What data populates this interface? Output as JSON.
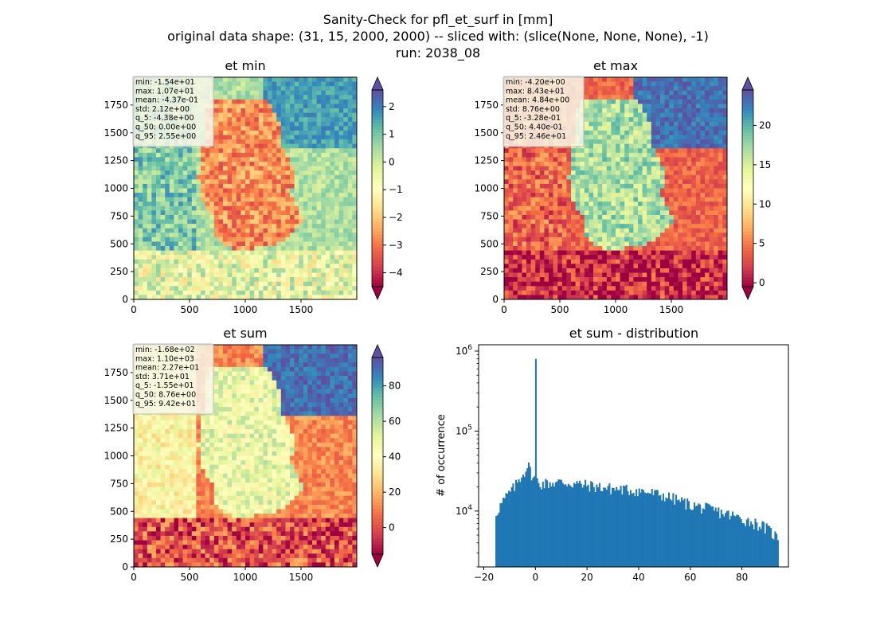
{
  "figure": {
    "title_lines": [
      "Sanity-Check for pfl_et_surf in [mm]",
      "original data shape: (31, 15, 2000, 2000) -- sliced with: (slice(None, None, None), -1)",
      "run: 2038_08"
    ]
  },
  "colors": {
    "colormap": "Spectral",
    "stops": [
      "#9e0142",
      "#d53e4f",
      "#f46d43",
      "#fdae61",
      "#fee08b",
      "#ffffbf",
      "#e6f598",
      "#abdda4",
      "#66c2a5",
      "#3288bd",
      "#5e4fa2"
    ],
    "hist_bar": "#1f77b4",
    "stats_box_bg": "#f7f7e8",
    "stats_box_border": "#bbbbbb"
  },
  "chart_data": [
    {
      "type": "heatmap",
      "title": "et min",
      "x_ticks": [
        0,
        500,
        1000,
        1500
      ],
      "y_ticks": [
        0,
        250,
        500,
        750,
        1000,
        1250,
        1500,
        1750
      ],
      "xlim": [
        0,
        2000
      ],
      "ylim": [
        0,
        2000
      ],
      "colorbar": {
        "ticks": [
          -4,
          -3,
          -2,
          -1,
          0,
          1,
          2
        ],
        "labels": [
          "−4",
          "−3",
          "−2",
          "−1",
          "0",
          "1",
          "2"
        ],
        "range": [
          -4.5,
          2.6
        ],
        "extend": "both"
      },
      "stats": [
        {
          "label": "min",
          "value": "-1.54e+01"
        },
        {
          "label": "max",
          "value": "1.07e+01"
        },
        {
          "label": "mean",
          "value": "-4.37e-01"
        },
        {
          "label": "std",
          "value": "2.12e+00"
        },
        {
          "label": "q_5",
          "value": "-4.38e+00"
        },
        {
          "label": "q_50",
          "value": "0.00e+00"
        },
        {
          "label": "q_95",
          "value": "2.55e+00"
        }
      ],
      "regions": {
        "outside": 0.4,
        "inside": -2.7,
        "ocean_north": 1.6,
        "west": 0.9,
        "south": -0.5
      }
    },
    {
      "type": "heatmap",
      "title": "et max",
      "x_ticks": [
        0,
        500,
        1000,
        1500
      ],
      "y_ticks": [
        0,
        250,
        500,
        750,
        1000,
        1250,
        1500,
        1750
      ],
      "xlim": [
        0,
        2000
      ],
      "ylim": [
        0,
        2000
      ],
      "colorbar": {
        "ticks": [
          0,
          5,
          10,
          15,
          20
        ],
        "labels": [
          "0",
          "5",
          "10",
          "15",
          "20"
        ],
        "range": [
          -0.5,
          24.5
        ],
        "extend": "both"
      },
      "stats": [
        {
          "label": "min",
          "value": "-4.20e+00"
        },
        {
          "label": "max",
          "value": "8.43e+01"
        },
        {
          "label": "mean",
          "value": "4.84e+00"
        },
        {
          "label": "std",
          "value": "8.76e+00"
        },
        {
          "label": "q_5",
          "value": "-3.28e-01"
        },
        {
          "label": "q_50",
          "value": "4.40e-01"
        },
        {
          "label": "q_95",
          "value": "2.46e+01"
        }
      ],
      "regions": {
        "outside": 4.0,
        "inside": 17.0,
        "ocean_north": 23.0,
        "west": 4.0,
        "south": 1.0
      }
    },
    {
      "type": "heatmap",
      "title": "et sum",
      "x_ticks": [
        0,
        500,
        1000,
        1500
      ],
      "y_ticks": [
        0,
        250,
        500,
        750,
        1000,
        1250,
        1500,
        1750
      ],
      "xlim": [
        0,
        2000
      ],
      "ylim": [
        0,
        2000
      ],
      "colorbar": {
        "ticks": [
          0,
          20,
          40,
          60,
          80
        ],
        "labels": [
          "0",
          "20",
          "40",
          "60",
          "80"
        ],
        "range": [
          -15,
          96
        ],
        "extend": "both"
      },
      "stats": [
        {
          "label": "min",
          "value": "-1.68e+02"
        },
        {
          "label": "max",
          "value": "1.10e+03"
        },
        {
          "label": "mean",
          "value": "2.27e+01"
        },
        {
          "label": "std",
          "value": "3.71e+01"
        },
        {
          "label": "q_5",
          "value": "-1.55e+01"
        },
        {
          "label": "q_50",
          "value": "8.76e+00"
        },
        {
          "label": "q_95",
          "value": "9.42e+01"
        }
      ],
      "regions": {
        "outside": 12.0,
        "inside": 48.0,
        "ocean_north": 90.0,
        "west": 40.0,
        "south": 0.0
      }
    },
    {
      "type": "bar",
      "title": "et sum - distribution",
      "ylabel": "# of occurrence",
      "yscale": "log",
      "xlim": [
        -22,
        98
      ],
      "ylim": [
        2000,
        1200000
      ],
      "x_ticks": [
        -20,
        0,
        20,
        40,
        60,
        80
      ],
      "x_tick_labels": [
        "−20",
        "0",
        "20",
        "40",
        "60",
        "80"
      ],
      "y_ticks": [
        10000,
        100000,
        1000000
      ],
      "bins": {
        "start": -15.5,
        "end": 94.2,
        "count": 200
      },
      "spike": {
        "x": 0,
        "count": 800000
      },
      "profile": [
        {
          "x": -15.5,
          "count": 9000
        },
        {
          "x": -12,
          "count": 14000
        },
        {
          "x": -8,
          "count": 20000
        },
        {
          "x": -4,
          "count": 32000
        },
        {
          "x": -3,
          "count": 38000
        },
        {
          "x": -1,
          "count": 26000
        },
        {
          "x": 2,
          "count": 22000
        },
        {
          "x": 10,
          "count": 23000
        },
        {
          "x": 20,
          "count": 21000
        },
        {
          "x": 30,
          "count": 19000
        },
        {
          "x": 40,
          "count": 18000
        },
        {
          "x": 50,
          "count": 15500
        },
        {
          "x": 60,
          "count": 12000
        },
        {
          "x": 70,
          "count": 10000
        },
        {
          "x": 80,
          "count": 8000
        },
        {
          "x": 88,
          "count": 6500
        },
        {
          "x": 94.2,
          "count": 4500
        }
      ]
    }
  ]
}
